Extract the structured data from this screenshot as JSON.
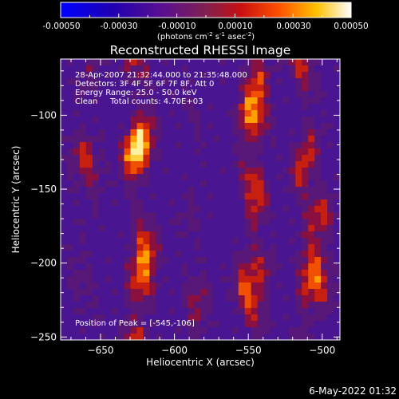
{
  "chart_data": {
    "type": "heatmap",
    "title": "Reconstructed RHESSI Image",
    "xlabel": "Heliocentric X (arcsec)",
    "ylabel": "Heliocentric Y (arcsec)",
    "xlim": [
      -677,
      -488
    ],
    "ylim": [
      -252,
      -62
    ],
    "x_ticks": [
      -650,
      -600,
      -550,
      -500
    ],
    "y_ticks": [
      -100,
      -150,
      -200,
      -250
    ],
    "colorbar": {
      "range": [
        -0.0005,
        0.0005
      ],
      "ticks": [
        "-0.00050",
        "-0.00030",
        "-0.00010",
        "0.00010",
        "0.00030",
        "0.00050"
      ],
      "unit_prefix": "(photons cm",
      "unit_exp1": "-2",
      "unit_mid": " s",
      "unit_exp2": "-1",
      "unit_mid2": " asec",
      "unit_exp3": "-2",
      "unit_suffix": ")"
    },
    "info_lines": [
      "28-Apr-2007 21:32:44.000 to 21:35:48.000",
      "Detectors: 3F 4F 5F 6F 7F 8F, Att 0",
      "Energy Range: 25.0 - 50.0 keV",
      "Clean     Total counts: 4.70E+03"
    ],
    "peak_label": "Position of Peak = [-545,-106]",
    "peak": [
      -545,
      -106
    ],
    "colormap": "red-temperature (blue/purple negative, red-yellow-white positive)",
    "grid": false
  },
  "footer": {
    "timestamp": "6-May-2022 01:32"
  }
}
